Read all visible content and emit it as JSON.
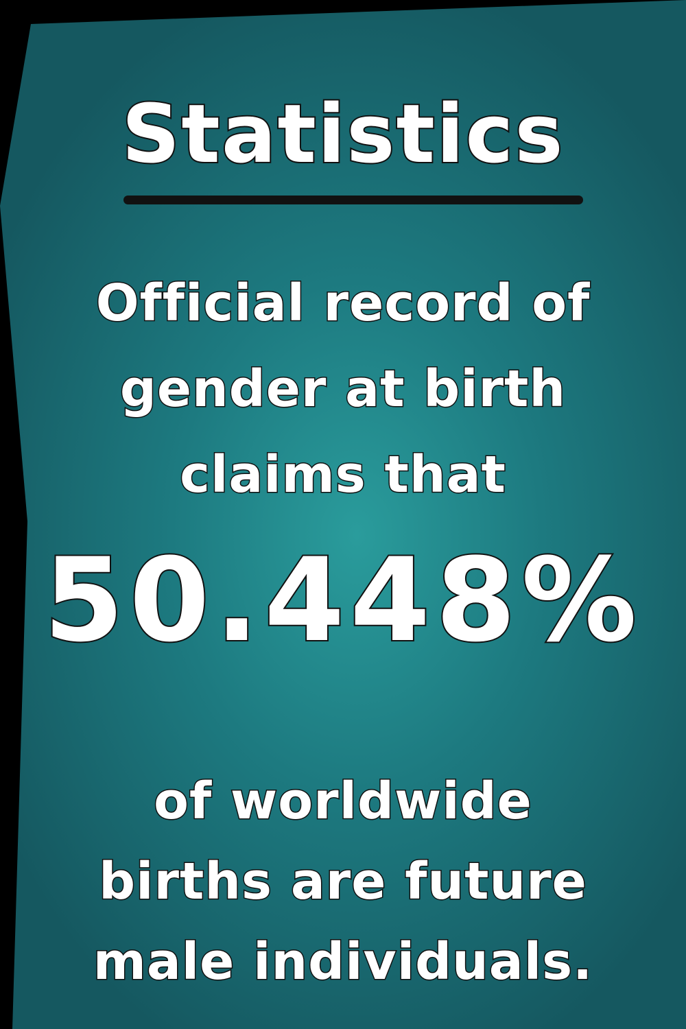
{
  "poster": {
    "title": "Statistics",
    "intro_lines": [
      "Official record of",
      "gender at birth",
      "claims that"
    ],
    "stat_value": "50.448%",
    "outro_lines": [
      "of worldwide",
      "births are future",
      "male individuals."
    ],
    "colors": {
      "background_outer": "#000000",
      "panel_center": "#2a9c9c",
      "panel_edge": "#155860",
      "text_fill": "#ffffff",
      "text_outline": "#111111"
    }
  }
}
